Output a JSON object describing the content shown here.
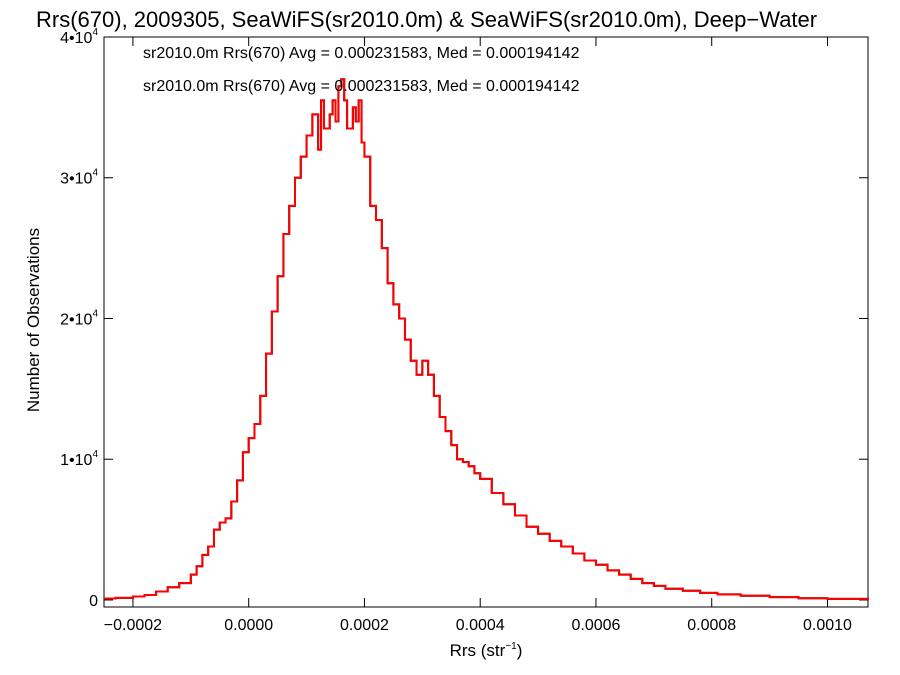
{
  "chart_data": {
    "type": "histogram",
    "title": "Rrs(670), 2009305, SeaWiFS(sr2010.0m) & SeaWiFS(sr2010.0m), Deep−Water",
    "xlabel": {
      "base": "Rrs (str",
      "exp": "−1",
      "tail": ")"
    },
    "ylabel": "Number of Observations",
    "xlim": [
      -0.00025,
      0.00107
    ],
    "ylim": [
      -500,
      40000
    ],
    "x_ticks": [
      {
        "value": -0.0002,
        "label": "−0.0002"
      },
      {
        "value": 0.0,
        "label": "0.0000"
      },
      {
        "value": 0.0002,
        "label": "0.0002"
      },
      {
        "value": 0.0004,
        "label": "0.0004"
      },
      {
        "value": 0.0006,
        "label": "0.0006"
      },
      {
        "value": 0.0008,
        "label": "0.0008"
      },
      {
        "value": 0.001,
        "label": "0.0010"
      }
    ],
    "y_ticks": [
      {
        "value": 0,
        "base": "0",
        "exp": ""
      },
      {
        "value": 10000,
        "base": "1•10",
        "exp": "4"
      },
      {
        "value": 20000,
        "base": "2•10",
        "exp": "4"
      },
      {
        "value": 30000,
        "base": "3•10",
        "exp": "4"
      },
      {
        "value": 40000,
        "base": "4•10",
        "exp": "4"
      }
    ],
    "legend": [
      {
        "text": "sr2010.0m Rrs(670) Avg = 0.000231583, Med = 0.000194142",
        "color": "#000000"
      },
      {
        "text": "sr2010.0m Rrs(670) Avg = 0.000231583, Med = 0.000194142",
        "color": "#ff0000"
      }
    ],
    "legend_position": "top-left",
    "series": [
      {
        "color": "#ff0000",
        "x": [
          -0.00025,
          -0.00023,
          -0.0002,
          -0.00018,
          -0.00016,
          -0.00014,
          -0.00012,
          -0.0001,
          -9e-05,
          -8e-05,
          -7e-05,
          -6e-05,
          -5e-05,
          -4e-05,
          -3e-05,
          -2e-05,
          -1e-05,
          0.0,
          1e-05,
          2e-05,
          3e-05,
          4e-05,
          5e-05,
          6e-05,
          7e-05,
          8e-05,
          9e-05,
          0.0001,
          0.00011,
          0.00012,
          0.000125,
          0.00013,
          0.00014,
          0.000145,
          0.00015,
          0.000155,
          0.00016,
          0.000165,
          0.00017,
          0.00018,
          0.000185,
          0.00019,
          0.000195,
          0.0002,
          0.00021,
          0.00022,
          0.00023,
          0.00024,
          0.00025,
          0.00026,
          0.00027,
          0.00028,
          0.00029,
          0.0003,
          0.00031,
          0.00032,
          0.00033,
          0.00034,
          0.00035,
          0.00036,
          0.00037,
          0.00038,
          0.00039,
          0.0004,
          0.00042,
          0.00044,
          0.00046,
          0.00048,
          0.0005,
          0.00052,
          0.00054,
          0.00056,
          0.00058,
          0.0006,
          0.00062,
          0.00064,
          0.00066,
          0.00068,
          0.0007,
          0.00072,
          0.00075,
          0.00078,
          0.00081,
          0.00085,
          0.0009,
          0.00095,
          0.001,
          0.00107
        ],
        "y": [
          100,
          150,
          250,
          350,
          600,
          900,
          1200,
          1800,
          2400,
          3200,
          3800,
          5000,
          5500,
          5800,
          7000,
          8500,
          10500,
          11500,
          12500,
          14500,
          17500,
          20500,
          23000,
          26000,
          28000,
          30000,
          31500,
          33000,
          34500,
          32000,
          35500,
          33500,
          34500,
          35500,
          34000,
          36500,
          37000,
          35500,
          33500,
          35000,
          34000,
          35500,
          32500,
          31500,
          28000,
          27000,
          25000,
          22500,
          21000,
          20000,
          18500,
          17000,
          16000,
          17000,
          16000,
          14500,
          13000,
          12000,
          11000,
          10000,
          9800,
          9500,
          9000,
          8600,
          7600,
          6800,
          6000,
          5200,
          4700,
          4200,
          3800,
          3300,
          2800,
          2500,
          2100,
          1800,
          1500,
          1200,
          1000,
          800,
          650,
          500,
          400,
          300,
          200,
          120,
          80,
          40
        ]
      }
    ]
  }
}
